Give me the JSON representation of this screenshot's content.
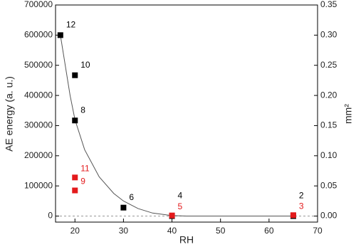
{
  "chart_data": {
    "type": "scatter",
    "xlabel": "RH",
    "ylabel": "AE energy (a. u.)",
    "y2label": "mm²",
    "xlim": [
      16,
      70
    ],
    "xticks": [
      20,
      30,
      40,
      50,
      60,
      70
    ],
    "ylim": [
      -20000,
      700000
    ],
    "yticks": [
      0,
      100000,
      200000,
      300000,
      400000,
      500000,
      600000,
      700000
    ],
    "y2lim": [
      -0.01,
      0.35
    ],
    "y2ticks": [
      {
        "value": 0,
        "label": "0.00"
      },
      0.05,
      {
        "value": 0.1,
        "label": "0.10"
      },
      0.15,
      {
        "value": 0.2,
        "label": "0.20"
      },
      0.25,
      {
        "value": 0.3,
        "label": "0.30"
      },
      0.35
    ],
    "hline": 0,
    "series": [
      {
        "color": "#000000",
        "x": [
          17,
          20,
          20,
          30,
          40,
          65
        ],
        "values": [
          600000,
          467000,
          317000,
          28000,
          0,
          0
        ],
        "labels": [
          "12",
          "10",
          "8",
          "6",
          "4",
          "2"
        ]
      },
      {
        "color": "#e31a1c",
        "x": [
          20,
          20,
          40,
          65
        ],
        "values": [
          128000,
          85000,
          2000,
          3000
        ],
        "labels": [
          "11",
          "9",
          "5",
          "3"
        ]
      }
    ],
    "fit": {
      "color": "#555555",
      "x": [
        17,
        18,
        19,
        20,
        22,
        25,
        28,
        30,
        33,
        36,
        40,
        43,
        50,
        60,
        65
      ],
      "values": [
        600000,
        500000,
        400000,
        320000,
        220000,
        130000,
        75000,
        50000,
        25000,
        10000,
        1500,
        0,
        0,
        0,
        0
      ]
    }
  }
}
